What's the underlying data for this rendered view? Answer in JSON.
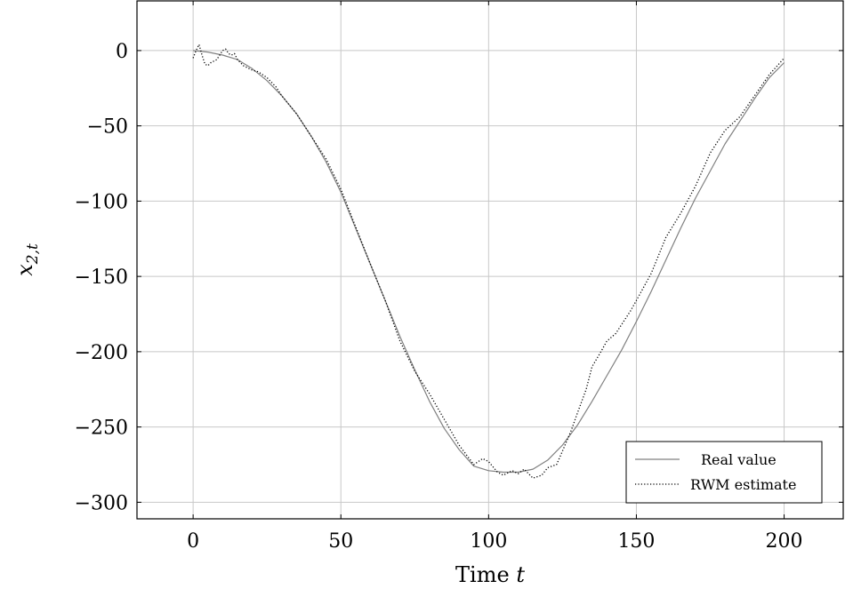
{
  "chart_data": {
    "type": "line",
    "title": "",
    "xlabel": "Time t",
    "ylabel": "x_{2,t}",
    "xlim": [
      -19,
      220
    ],
    "ylim": [
      -311,
      33
    ],
    "xticks": [
      0,
      50,
      100,
      150,
      200
    ],
    "xtick_labels": [
      "0",
      "50",
      "100",
      "150",
      "200"
    ],
    "yticks": [
      0,
      -50,
      -100,
      -150,
      -200,
      -250,
      -300
    ],
    "ytick_labels": [
      "0",
      "−50",
      "−100",
      "−150",
      "−200",
      "−250",
      "−300"
    ],
    "grid": true,
    "legend_position": "bottom-right",
    "series": [
      {
        "name": "Real value",
        "style": "solid",
        "color": "#808080",
        "x": [
          0,
          5,
          10,
          15,
          20,
          25,
          30,
          35,
          40,
          45,
          50,
          55,
          60,
          65,
          70,
          75,
          80,
          85,
          90,
          95,
          100,
          105,
          110,
          115,
          120,
          125,
          130,
          135,
          140,
          145,
          150,
          155,
          160,
          165,
          170,
          175,
          180,
          185,
          190,
          195,
          200
        ],
        "y": [
          0,
          -1,
          -3,
          -6,
          -12,
          -20,
          -30,
          -42,
          -57,
          -74,
          -94,
          -118,
          -142,
          -166,
          -190,
          -212,
          -233,
          -251,
          -265,
          -276,
          -279,
          -280,
          -280,
          -278,
          -272,
          -262,
          -249,
          -233,
          -216,
          -199,
          -180,
          -160,
          -139,
          -118,
          -98,
          -80,
          -62,
          -47,
          -32,
          -18,
          -8
        ]
      },
      {
        "name": "RWM estimate",
        "style": "dotted",
        "color": "#000000",
        "x": [
          0,
          1,
          2,
          3,
          4,
          5,
          6,
          7,
          8,
          9,
          10,
          11,
          12,
          13,
          14,
          15,
          17,
          20,
          22,
          25,
          28,
          30,
          35,
          40,
          45,
          50,
          55,
          60,
          65,
          70,
          75,
          80,
          85,
          90,
          95,
          98,
          100,
          103,
          105,
          108,
          110,
          112,
          115,
          118,
          120,
          123,
          125,
          128,
          130,
          133,
          135,
          138,
          140,
          143,
          145,
          148,
          150,
          155,
          160,
          165,
          170,
          175,
          180,
          185,
          190,
          195,
          200
        ],
        "y": [
          -5,
          0,
          4,
          -3,
          -9,
          -10,
          -8,
          -7,
          -6,
          -3,
          0,
          1,
          -2,
          -3,
          -2,
          -6,
          -10,
          -13,
          -14,
          -18,
          -24,
          -30,
          -42,
          -57,
          -72,
          -92,
          -117,
          -142,
          -166,
          -193,
          -213,
          -228,
          -245,
          -262,
          -275,
          -271,
          -273,
          -280,
          -282,
          -279,
          -281,
          -278,
          -284,
          -282,
          -277,
          -275,
          -266,
          -252,
          -241,
          -225,
          -210,
          -200,
          -193,
          -188,
          -182,
          -173,
          -166,
          -148,
          -124,
          -108,
          -90,
          -68,
          -53,
          -44,
          -30,
          -16,
          -5
        ]
      }
    ]
  }
}
